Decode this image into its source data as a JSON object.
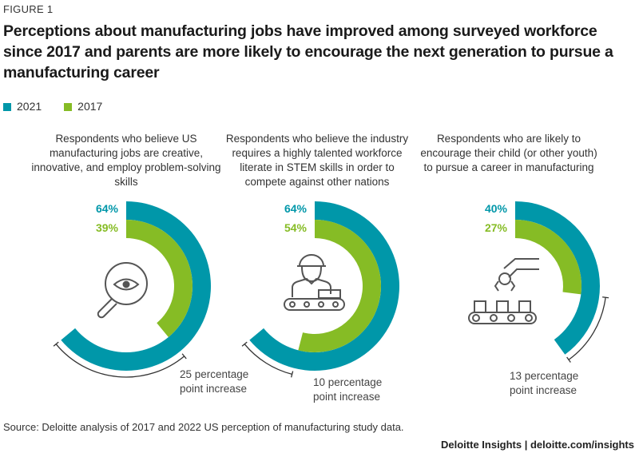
{
  "figure_label": "FIGURE 1",
  "title": "Perceptions about manufacturing jobs have improved among surveyed workforce since 2017 and parents are more likely to encourage the next generation to pursue a manufacturing career",
  "source": "Source: Deloitte analysis of 2017 and 2022 US perception of manufacturing study data.",
  "brand": "Deloitte Insights | deloitte.com/insights",
  "colors": {
    "2021": "#0097A9",
    "2017": "#86BC25"
  },
  "chart_data": {
    "type": "donut",
    "legend": [
      "2021",
      "2017"
    ],
    "legend_placement": "top-left",
    "panels": [
      {
        "description": "Respondents who believe US manufacturing jobs are creative, innovative, and employ problem-solving skills",
        "values": {
          "2021": 64,
          "2017": 39
        },
        "labels": {
          "2021": "64%",
          "2017": "39%"
        },
        "annotation": "25 percentage point increase",
        "icon": "magnifier-eye-icon"
      },
      {
        "description": "Respondents who believe the industry requires a highly talented workforce literate in STEM skills in order to compete against other nations",
        "values": {
          "2021": 64,
          "2017": 54
        },
        "labels": {
          "2021": "64%",
          "2017": "54%"
        },
        "annotation": "10 percentage point increase",
        "icon": "worker-conveyor-icon"
      },
      {
        "description": "Respondents who are likely to encourage their child (or other youth) to pursue a career in manufacturing",
        "values": {
          "2021": 40,
          "2017": 27
        },
        "labels": {
          "2021": "40%",
          "2017": "27%"
        },
        "annotation": "13 percentage point increase",
        "icon": "robot-arm-conveyor-icon"
      }
    ]
  }
}
